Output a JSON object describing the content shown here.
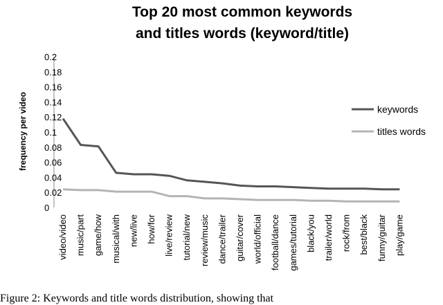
{
  "chart_data": {
    "type": "line",
    "title": [
      "Top 20 most common keywords",
      "and titles words (keyword/title)"
    ],
    "xlabel": "",
    "ylabel": "frequency per video",
    "ylim": [
      0,
      0.2
    ],
    "yticks": [
      "0",
      "0.02",
      "0.04",
      "0.06",
      "0.08",
      "0.1",
      "0.12",
      "0.14",
      "0.16",
      "0.18",
      "0.2"
    ],
    "grid": false,
    "legend_position": "right",
    "categories": [
      "video/video",
      "music/part",
      "game/how",
      "musical/with",
      "new/live",
      "how/for",
      "live/review",
      "tutorial/new",
      "review/music",
      "dance/trailer",
      "guitar/cover",
      "world/official",
      "football/dance",
      "games/tutorial",
      "black/you",
      "trailer/world",
      "rock/from",
      "best/black",
      "funny/guitar",
      "play/game"
    ],
    "series": [
      {
        "name": "keywords",
        "color": "#555555",
        "values": [
          0.118,
          0.083,
          0.081,
          0.046,
          0.044,
          0.044,
          0.042,
          0.036,
          0.034,
          0.032,
          0.029,
          0.028,
          0.028,
          0.027,
          0.026,
          0.025,
          0.025,
          0.025,
          0.024,
          0.024
        ]
      },
      {
        "name": "titles words",
        "color": "#b4b4b4",
        "values": [
          0.024,
          0.023,
          0.023,
          0.021,
          0.021,
          0.021,
          0.015,
          0.015,
          0.012,
          0.012,
          0.011,
          0.01,
          0.01,
          0.01,
          0.009,
          0.009,
          0.008,
          0.008,
          0.008,
          0.008
        ]
      }
    ]
  },
  "caption": "Figure 2: Keywords and title words distribution, showing that"
}
